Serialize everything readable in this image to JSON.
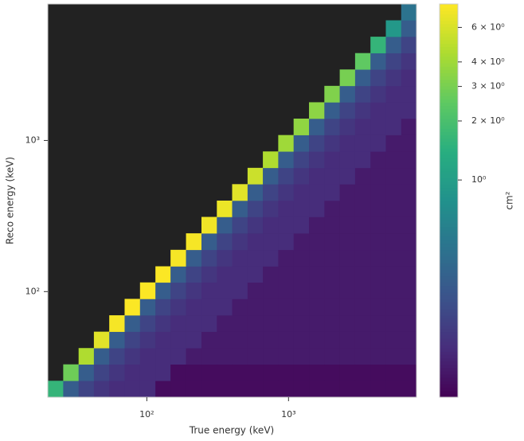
{
  "chart_data": {
    "type": "heatmap",
    "xlabel": "True energy (keV)",
    "ylabel": "Reco energy (keV)",
    "colorbar_label": "cm²",
    "xscale": "log",
    "yscale": "log",
    "cscale": "log",
    "xlim": [
      20,
      8000
    ],
    "ylim": [
      20,
      8000
    ],
    "clim": [
      0.078,
      7.9
    ],
    "xticks": [
      {
        "value": 100,
        "label": "10²"
      },
      {
        "value": 1000,
        "label": "10³"
      }
    ],
    "yticks": [
      {
        "value": 100,
        "label": "10²"
      },
      {
        "value": 1000,
        "label": "10³"
      }
    ],
    "cticks": [
      {
        "value": 1,
        "label": "10⁰"
      },
      {
        "value": 2,
        "label": "2 × 10⁰"
      },
      {
        "value": 3,
        "label": "3 × 10⁰"
      },
      {
        "value": 4,
        "label": "4 × 10⁰"
      },
      {
        "value": 6,
        "label": "6 × 10⁰"
      }
    ],
    "colorscale": [
      "#440154",
      "#472d7b",
      "#3b528b",
      "#2c728e",
      "#21918c",
      "#28ae80",
      "#5ec962",
      "#addc30",
      "#fde725"
    ],
    "background": "#222222",
    "xbins": [
      20,
      25.7,
      33,
      42.3,
      54.3,
      69.7,
      89.5,
      115,
      147,
      189,
      243,
      312,
      400,
      514,
      659,
      846,
      1086,
      1395,
      1790,
      2298,
      2950,
      3786,
      4860,
      6238,
      8000
    ],
    "ybins": [
      20,
      25.7,
      33,
      42.3,
      54.3,
      69.7,
      89.5,
      115,
      147,
      189,
      243,
      312,
      400,
      514,
      659,
      846,
      1086,
      1395,
      1790,
      2298,
      2950,
      3786,
      4860,
      6238,
      8000
    ],
    "values": [
      [
        1.6,
        0.3,
        0.2,
        0.16,
        0.14,
        0.14,
        0.14,
        0.09,
        0.09,
        0.09,
        0.09,
        0.09,
        0.09,
        0.09,
        0.09,
        0.09,
        0.09,
        0.09,
        0.09,
        0.09,
        0.09,
        0.09,
        0.09,
        0.09
      ],
      [
        null,
        2.8,
        0.3,
        0.2,
        0.16,
        0.14,
        0.14,
        0.14,
        0.09,
        0.09,
        0.09,
        0.09,
        0.09,
        0.09,
        0.09,
        0.09,
        0.09,
        0.09,
        0.09,
        0.09,
        0.09,
        0.09,
        0.09,
        0.09
      ],
      [
        null,
        null,
        4.5,
        0.3,
        0.2,
        0.16,
        0.14,
        0.14,
        0.14,
        0.11,
        0.11,
        0.11,
        0.11,
        0.11,
        0.11,
        0.11,
        0.11,
        0.11,
        0.11,
        0.11,
        0.11,
        0.11,
        0.11,
        0.11
      ],
      [
        null,
        null,
        null,
        6.5,
        0.3,
        0.2,
        0.16,
        0.14,
        0.14,
        0.14,
        0.11,
        0.11,
        0.11,
        0.11,
        0.11,
        0.11,
        0.11,
        0.11,
        0.11,
        0.11,
        0.11,
        0.11,
        0.11,
        0.11
      ],
      [
        null,
        null,
        null,
        null,
        7.5,
        0.3,
        0.2,
        0.16,
        0.14,
        0.14,
        0.14,
        0.11,
        0.11,
        0.11,
        0.11,
        0.11,
        0.11,
        0.11,
        0.11,
        0.11,
        0.11,
        0.11,
        0.11,
        0.11
      ],
      [
        null,
        null,
        null,
        null,
        null,
        7.8,
        0.3,
        0.2,
        0.16,
        0.14,
        0.14,
        0.14,
        0.11,
        0.11,
        0.11,
        0.11,
        0.11,
        0.11,
        0.11,
        0.11,
        0.11,
        0.11,
        0.11,
        0.11
      ],
      [
        null,
        null,
        null,
        null,
        null,
        null,
        7.8,
        0.3,
        0.2,
        0.16,
        0.14,
        0.14,
        0.14,
        0.11,
        0.11,
        0.11,
        0.11,
        0.11,
        0.11,
        0.11,
        0.11,
        0.11,
        0.11,
        0.11
      ],
      [
        null,
        null,
        null,
        null,
        null,
        null,
        null,
        7.8,
        0.3,
        0.2,
        0.16,
        0.14,
        0.14,
        0.14,
        0.11,
        0.11,
        0.11,
        0.11,
        0.11,
        0.11,
        0.11,
        0.11,
        0.11,
        0.11
      ],
      [
        null,
        null,
        null,
        null,
        null,
        null,
        null,
        null,
        7.5,
        0.3,
        0.2,
        0.16,
        0.14,
        0.14,
        0.14,
        0.11,
        0.11,
        0.11,
        0.11,
        0.11,
        0.11,
        0.11,
        0.11,
        0.11
      ],
      [
        null,
        null,
        null,
        null,
        null,
        null,
        null,
        null,
        null,
        7.5,
        0.3,
        0.2,
        0.16,
        0.14,
        0.14,
        0.14,
        0.11,
        0.11,
        0.11,
        0.11,
        0.11,
        0.11,
        0.11,
        0.11
      ],
      [
        null,
        null,
        null,
        null,
        null,
        null,
        null,
        null,
        null,
        null,
        7.2,
        0.3,
        0.2,
        0.16,
        0.14,
        0.14,
        0.14,
        0.11,
        0.11,
        0.11,
        0.11,
        0.11,
        0.11,
        0.11
      ],
      [
        null,
        null,
        null,
        null,
        null,
        null,
        null,
        null,
        null,
        null,
        null,
        7.0,
        0.3,
        0.2,
        0.16,
        0.14,
        0.14,
        0.14,
        0.11,
        0.11,
        0.11,
        0.11,
        0.11,
        0.11
      ],
      [
        null,
        null,
        null,
        null,
        null,
        null,
        null,
        null,
        null,
        null,
        null,
        null,
        6.5,
        0.3,
        0.2,
        0.16,
        0.14,
        0.14,
        0.14,
        0.11,
        0.11,
        0.11,
        0.11,
        0.11
      ],
      [
        null,
        null,
        null,
        null,
        null,
        null,
        null,
        null,
        null,
        null,
        null,
        null,
        null,
        5.5,
        0.3,
        0.2,
        0.16,
        0.14,
        0.14,
        0.14,
        0.11,
        0.11,
        0.11,
        0.11
      ],
      [
        null,
        null,
        null,
        null,
        null,
        null,
        null,
        null,
        null,
        null,
        null,
        null,
        null,
        null,
        4.5,
        0.3,
        0.2,
        0.16,
        0.14,
        0.14,
        0.14,
        0.11,
        0.11,
        0.11
      ],
      [
        null,
        null,
        null,
        null,
        null,
        null,
        null,
        null,
        null,
        null,
        null,
        null,
        null,
        null,
        null,
        4.0,
        0.3,
        0.2,
        0.16,
        0.14,
        0.14,
        0.14,
        0.11,
        0.11
      ],
      [
        null,
        null,
        null,
        null,
        null,
        null,
        null,
        null,
        null,
        null,
        null,
        null,
        null,
        null,
        null,
        null,
        3.6,
        0.3,
        0.2,
        0.16,
        0.14,
        0.14,
        0.14,
        0.11
      ],
      [
        null,
        null,
        null,
        null,
        null,
        null,
        null,
        null,
        null,
        null,
        null,
        null,
        null,
        null,
        null,
        null,
        null,
        3.5,
        0.3,
        0.2,
        0.16,
        0.14,
        0.14,
        0.14
      ],
      [
        null,
        null,
        null,
        null,
        null,
        null,
        null,
        null,
        null,
        null,
        null,
        null,
        null,
        null,
        null,
        null,
        null,
        null,
        3.2,
        0.3,
        0.2,
        0.16,
        0.14,
        0.14
      ],
      [
        null,
        null,
        null,
        null,
        null,
        null,
        null,
        null,
        null,
        null,
        null,
        null,
        null,
        null,
        null,
        null,
        null,
        null,
        null,
        3.0,
        0.3,
        0.2,
        0.16,
        0.14
      ],
      [
        null,
        null,
        null,
        null,
        null,
        null,
        null,
        null,
        null,
        null,
        null,
        null,
        null,
        null,
        null,
        null,
        null,
        null,
        null,
        null,
        2.5,
        0.3,
        0.2,
        0.16
      ],
      [
        null,
        null,
        null,
        null,
        null,
        null,
        null,
        null,
        null,
        null,
        null,
        null,
        null,
        null,
        null,
        null,
        null,
        null,
        null,
        null,
        null,
        1.6,
        0.3,
        0.2
      ],
      [
        null,
        null,
        null,
        null,
        null,
        null,
        null,
        null,
        null,
        null,
        null,
        null,
        null,
        null,
        null,
        null,
        null,
        null,
        null,
        null,
        null,
        null,
        0.9,
        0.3
      ],
      [
        null,
        null,
        null,
        null,
        null,
        null,
        null,
        null,
        null,
        null,
        null,
        null,
        null,
        null,
        null,
        null,
        null,
        null,
        null,
        null,
        null,
        null,
        null,
        0.45
      ]
    ]
  }
}
